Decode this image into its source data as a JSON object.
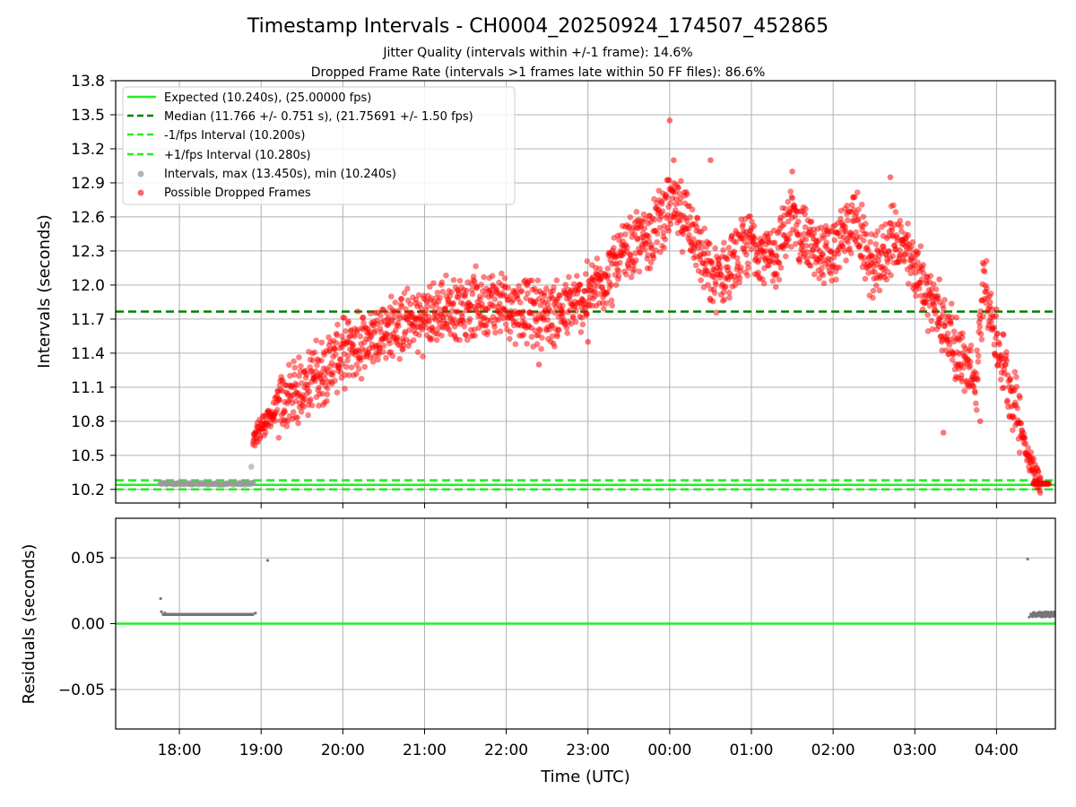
{
  "chart_data": [
    {
      "type": "scatter",
      "title": "Timestamp Intervals - CH0004_20250924_174507_452865",
      "subtitle_1": "Jitter Quality (intervals within +/-1 frame): 14.6%",
      "subtitle_2": "Dropped Frame Rate (intervals >1 frames late within 50 FF files): 86.6%",
      "ylabel": "Intervals (seconds)",
      "xlabel": "",
      "xlim_hours": [
        17.22,
        28.72
      ],
      "ylim": [
        10.08,
        13.8
      ],
      "yticks": [
        10.2,
        10.5,
        10.8,
        11.1,
        11.4,
        11.7,
        12.0,
        12.3,
        12.6,
        12.9,
        13.2,
        13.5,
        13.8
      ],
      "ytick_labels": [
        "10.2",
        "10.5",
        "10.8",
        "11.1",
        "11.4",
        "11.7",
        "12.0",
        "12.3",
        "12.6",
        "12.9",
        "13.2",
        "13.5",
        "13.8"
      ],
      "grid": true,
      "legend_position": "top-left",
      "reference_lines": {
        "expected": 10.24,
        "median": 11.766,
        "minus_fps": 10.2,
        "plus_fps": 10.28,
        "colors": {
          "expected": "#22ee22",
          "median": "#008000",
          "minus_fps": "#22ee22",
          "plus_fps": "#22ee22"
        }
      },
      "legend": [
        {
          "label": "Expected (10.240s), (25.00000 fps)",
          "style": "solid",
          "color": "#22ee22"
        },
        {
          "label": "Median (11.766 +/- 0.751 s), (21.75691 +/- 1.50 fps)",
          "style": "dashed",
          "color": "#008000"
        },
        {
          "label": "-1/fps Interval (10.200s)",
          "style": "dashed",
          "color": "#22ee22"
        },
        {
          "label": "+1/fps Interval (10.280s)",
          "style": "dashed",
          "color": "#22ee22"
        },
        {
          "label": "Intervals, max (13.450s), min (10.240s)",
          "style": "marker",
          "color": "#999999"
        },
        {
          "label": "Possible Dropped Frames",
          "style": "marker",
          "color": "#ff0000"
        }
      ],
      "series": [
        {
          "name": "Intervals (normal)",
          "color": "#999999",
          "x_hours": [
            17.77,
            17.85,
            17.95,
            18.05,
            18.15,
            18.25,
            18.35,
            18.45,
            18.55,
            18.65,
            18.75,
            18.85,
            18.9,
            18.88,
            18.92
          ],
          "values": [
            10.26,
            10.25,
            10.25,
            10.25,
            10.25,
            10.25,
            10.25,
            10.25,
            10.25,
            10.25,
            10.25,
            10.25,
            10.26,
            10.4,
            10.66
          ]
        },
        {
          "name": "Possible Dropped Frames (trend)",
          "color": "#ff0000",
          "x_hours": [
            18.9,
            19.0,
            19.25,
            19.5,
            19.75,
            20.0,
            20.25,
            20.5,
            20.75,
            21.0,
            21.25,
            21.5,
            21.75,
            22.0,
            22.25,
            22.5,
            22.75,
            23.0,
            23.25,
            23.5,
            23.75,
            24.0,
            24.25,
            24.5,
            24.75,
            25.0,
            25.25,
            25.5,
            25.75,
            26.0,
            26.25,
            26.5,
            26.75,
            27.0,
            27.25,
            27.5,
            27.75,
            27.85,
            28.0,
            28.25,
            28.4,
            28.55
          ],
          "values": [
            10.6,
            10.75,
            10.95,
            11.1,
            11.25,
            11.4,
            11.5,
            11.6,
            11.65,
            11.7,
            11.78,
            11.82,
            11.85,
            11.82,
            11.78,
            11.75,
            11.78,
            11.9,
            12.1,
            12.3,
            12.45,
            12.7,
            12.55,
            12.05,
            12.15,
            12.4,
            12.2,
            12.6,
            12.3,
            12.25,
            12.6,
            12.1,
            12.45,
            12.15,
            11.8,
            11.45,
            11.1,
            12.1,
            11.5,
            10.9,
            10.45,
            10.25
          ]
        },
        {
          "name": "Possible Dropped Frames (outliers)",
          "color": "#ff0000",
          "x_hours": [
            24.0,
            24.05,
            24.5,
            25.5,
            26.7,
            27.3,
            27.35,
            27.8,
            22.4,
            23.0
          ],
          "values": [
            13.45,
            13.1,
            13.1,
            13.0,
            12.95,
            12.05,
            10.7,
            10.8,
            11.3,
            11.5
          ]
        }
      ]
    },
    {
      "type": "scatter",
      "title": "",
      "xlabel": "Time (UTC)",
      "ylabel": "Residuals (seconds)",
      "xlim_hours": [
        17.22,
        28.72
      ],
      "ylim": [
        -0.08,
        0.08
      ],
      "yticks": [
        0.05,
        0.0,
        -0.05
      ],
      "ytick_labels": [
        "0.05",
        "0.00",
        "−0.05"
      ],
      "xticks_hours": [
        18,
        19,
        20,
        21,
        22,
        23,
        24,
        25,
        26,
        27,
        28
      ],
      "xtick_labels": [
        "18:00",
        "19:00",
        "20:00",
        "21:00",
        "22:00",
        "23:00",
        "00:00",
        "01:00",
        "02:00",
        "03:00",
        "04:00"
      ],
      "grid": true,
      "zero_line_color": "#22ee22",
      "series": [
        {
          "name": "Residuals",
          "color": "#777777",
          "x_hours": [
            17.77,
            17.78,
            17.82,
            17.9,
            18.0,
            18.1,
            18.2,
            18.3,
            18.4,
            18.5,
            18.6,
            18.7,
            18.8,
            18.9,
            18.93,
            19.08,
            28.38,
            28.4,
            28.45,
            28.5,
            28.55,
            28.6,
            28.65,
            28.7
          ],
          "values": [
            0.019,
            0.009,
            0.008,
            0.007,
            0.007,
            0.007,
            0.007,
            0.007,
            0.007,
            0.007,
            0.007,
            0.007,
            0.007,
            0.007,
            0.008,
            0.048,
            0.049,
            0.005,
            0.006,
            0.006,
            0.007,
            0.007,
            0.008,
            0.007
          ]
        }
      ]
    }
  ]
}
